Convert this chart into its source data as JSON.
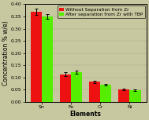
{
  "categories": [
    "Sn",
    "Fe",
    "Cr",
    "Ni"
  ],
  "red_values": [
    0.368,
    0.113,
    0.082,
    0.052
  ],
  "green_values": [
    0.35,
    0.122,
    0.07,
    0.048
  ],
  "red_errors": [
    0.013,
    0.008,
    0.005,
    0.004
  ],
  "green_errors": [
    0.009,
    0.007,
    0.004,
    0.003
  ],
  "red_color": "#ee1111",
  "green_color": "#55ee00",
  "red_label": "Without Separation from Zr",
  "green_label": "After separation from Zr with TBP",
  "xlabel": "Elements",
  "ylabel": "Concentration % w/e)",
  "ylim": [
    0.0,
    0.4
  ],
  "yticks": [
    0.0,
    0.05,
    0.1,
    0.15,
    0.2,
    0.25,
    0.3,
    0.35,
    0.4
  ],
  "bar_width": 0.38,
  "background_color": "#c8c8a0",
  "axes_color": "#c8c8a0",
  "legend_fontsize": 4.2,
  "axis_fontsize": 5.5,
  "tick_fontsize": 4.5
}
